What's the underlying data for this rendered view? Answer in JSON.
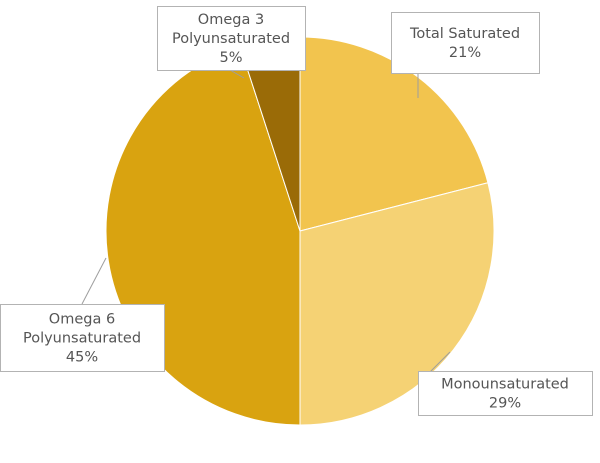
{
  "chart_data": {
    "type": "pie",
    "slices": [
      {
        "label": "Total Saturated",
        "label_lines": [
          "Total Saturated"
        ],
        "value": 21,
        "value_text": "21%",
        "color": "#F2C44E"
      },
      {
        "label": "Monounsaturated",
        "label_lines": [
          "Monounsaturated"
        ],
        "value": 29,
        "value_text": "29%",
        "color": "#F5D274"
      },
      {
        "label": "Omega 6 Polyunsaturated",
        "label_lines": [
          "Omega 6",
          "Polyunsaturated"
        ],
        "value": 45,
        "value_text": "45%",
        "color": "#D9A310"
      },
      {
        "label": "Omega 3 Polyunsaturated",
        "label_lines": [
          "Omega 3",
          "Polyunsaturated"
        ],
        "value": 5,
        "value_text": "5%",
        "color": "#9A6B07"
      }
    ],
    "label_style": "callout boxes with leader lines",
    "label_text_color": "#555555",
    "slice_border_color": "#ffffff"
  }
}
